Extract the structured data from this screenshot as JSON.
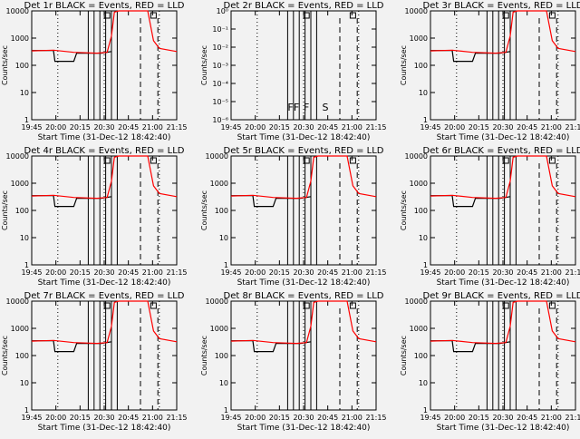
{
  "chart_data": {
    "type": "line",
    "x_ticks": [
      "19:45",
      "20:00",
      "20:15",
      "20:30",
      "20:45",
      "21:00",
      "21:15"
    ],
    "x_range_min": [
      0,
      100
    ],
    "xlabel": "Start Time (31-Dec-12 18:42:40)",
    "ylabel": "Counts/sec",
    "colors": {
      "events": "#000000",
      "lld": "#ff0000",
      "background": "#f2f2f2"
    },
    "series_shape": {
      "events": [
        [
          0,
          350
        ],
        [
          15,
          350
        ],
        [
          16,
          140
        ],
        [
          29,
          140
        ],
        [
          31,
          280
        ],
        [
          48,
          280
        ],
        [
          55,
          320
        ]
      ],
      "lld": [
        [
          0,
          340
        ],
        [
          15,
          360
        ],
        [
          29,
          300
        ],
        [
          45,
          280
        ],
        [
          52,
          300
        ],
        [
          55,
          1200
        ],
        [
          57,
          9000
        ],
        [
          60,
          12000
        ],
        [
          80,
          10000
        ],
        [
          84,
          800
        ],
        [
          88,
          420
        ],
        [
          100,
          320
        ]
      ],
      "vertical_lines": [
        39,
        43,
        47,
        51,
        55,
        59
      ],
      "dotted_lines": [
        18,
        50,
        88
      ],
      "dashed_lines": [
        75,
        87
      ],
      "markers": [
        52,
        84
      ]
    },
    "panels": [
      {
        "title": "Det 1r BLACK = Events, RED = LLD",
        "ylim": [
          1,
          10000
        ],
        "yscale": "log",
        "yticks": [
          "1",
          "10",
          "100",
          "1000",
          "10000"
        ],
        "events": true,
        "lld": true
      },
      {
        "title": "Det 2r BLACK = Events, RED = LLD",
        "ylim": [
          1e-06,
          1
        ],
        "yscale": "log",
        "yticks": [
          "10⁻⁶",
          "10⁻⁵",
          "10⁻⁴",
          "10⁻³",
          "10⁻²",
          "10⁻¹",
          "10⁰"
        ],
        "events": false,
        "lld": false,
        "letters": [
          {
            "t": "F",
            "x": 41
          },
          {
            "t": "F",
            "x": 45
          },
          {
            "t": "F",
            "x": 52
          },
          {
            "t": "S",
            "x": 65
          }
        ]
      },
      {
        "title": "Det 3r BLACK = Events, RED = LLD",
        "ylim": [
          1,
          10000
        ],
        "yscale": "log",
        "yticks": [
          "1",
          "10",
          "100",
          "1000",
          "10000"
        ],
        "events": true,
        "lld": true
      },
      {
        "title": "Det 4r BLACK = Events, RED = LLD",
        "ylim": [
          1,
          10000
        ],
        "yscale": "log",
        "yticks": [
          "1",
          "10",
          "100",
          "1000",
          "10000"
        ],
        "events": true,
        "lld": true
      },
      {
        "title": "Det 5r BLACK = Events, RED = LLD",
        "ylim": [
          1,
          10000
        ],
        "yscale": "log",
        "yticks": [
          "1",
          "10",
          "100",
          "1000",
          "10000"
        ],
        "events": true,
        "lld": true
      },
      {
        "title": "Det 6r BLACK = Events, RED = LLD",
        "ylim": [
          1,
          10000
        ],
        "yscale": "log",
        "yticks": [
          "1",
          "10",
          "100",
          "1000",
          "10000"
        ],
        "events": true,
        "lld": true
      },
      {
        "title": "Det 7r BLACK = Events, RED = LLD",
        "ylim": [
          1,
          10000
        ],
        "yscale": "log",
        "yticks": [
          "1",
          "10",
          "100",
          "1000",
          "10000"
        ],
        "events": true,
        "lld": true
      },
      {
        "title": "Det 8r BLACK = Events, RED = LLD",
        "ylim": [
          1,
          10000
        ],
        "yscale": "log",
        "yticks": [
          "1",
          "10",
          "100",
          "1000",
          "10000"
        ],
        "events": true,
        "lld": true
      },
      {
        "title": "Det 9r BLACK = Events, RED = LLD",
        "ylim": [
          1,
          10000
        ],
        "yscale": "log",
        "yticks": [
          "1",
          "10",
          "100",
          "1000",
          "10000"
        ],
        "events": true,
        "lld": true
      }
    ]
  }
}
